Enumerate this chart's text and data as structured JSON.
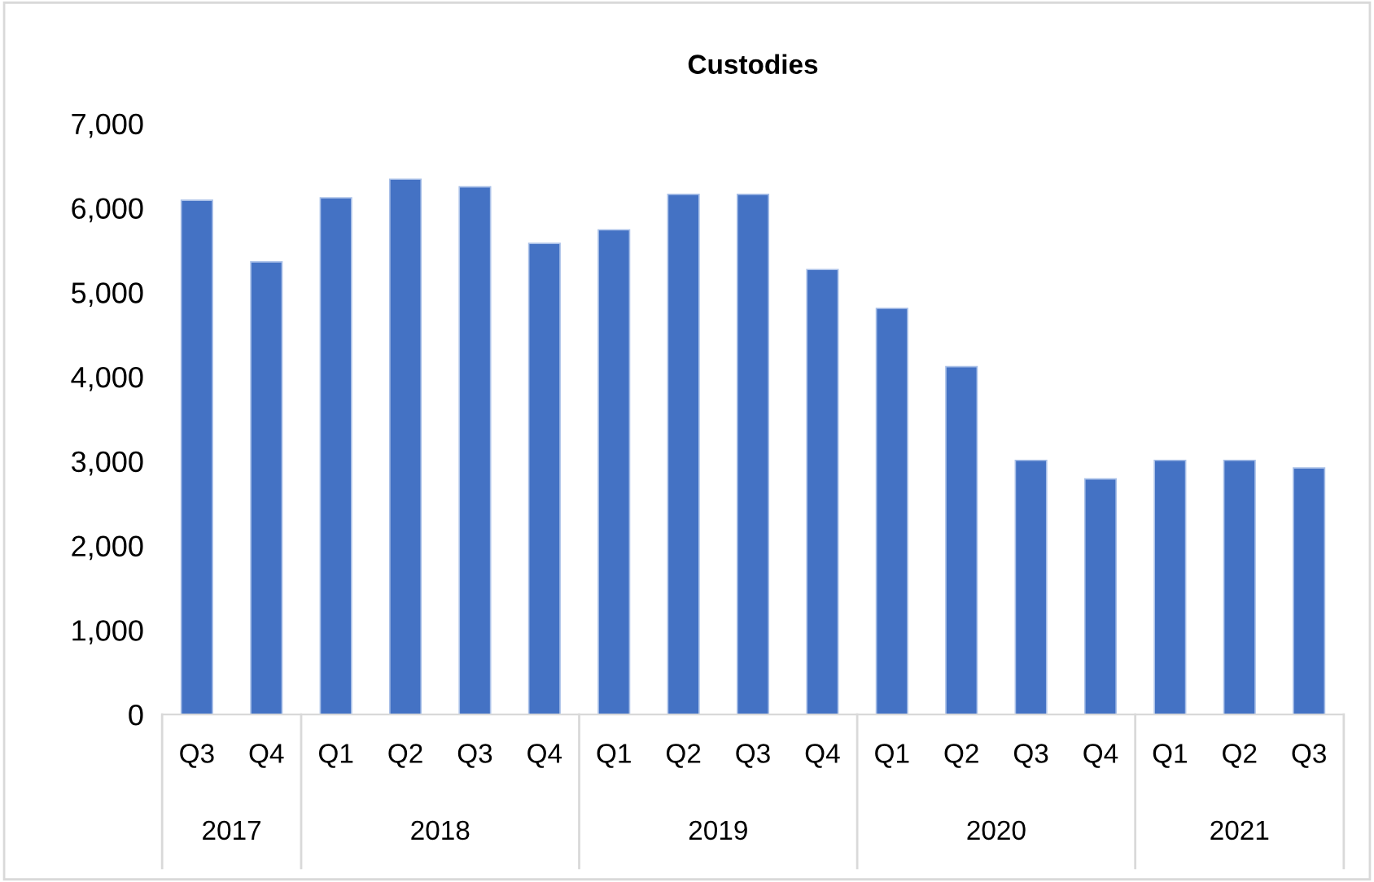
{
  "chart_data": {
    "type": "bar",
    "title": "Custodies",
    "categories": [
      "Q3",
      "Q4",
      "Q1",
      "Q2",
      "Q3",
      "Q4",
      "Q1",
      "Q2",
      "Q3",
      "Q4",
      "Q1",
      "Q2",
      "Q3",
      "Q4",
      "Q1",
      "Q2",
      "Q3"
    ],
    "values": [
      6090,
      5360,
      6120,
      6340,
      6250,
      5580,
      5740,
      6160,
      6160,
      5270,
      4810,
      4120,
      3010,
      2790,
      3010,
      3010,
      2920
    ],
    "color": "#4472c4",
    "annotations": [
      "2017",
      "2018",
      "2019",
      "2020",
      "2021"
    ],
    "ylim": [
      0,
      7000
    ],
    "yticks": [
      {
        "value": 0,
        "label": "0"
      },
      {
        "value": 1000,
        "label": "1,000"
      },
      {
        "value": 2000,
        "label": "2,000"
      },
      {
        "value": 3000,
        "label": "3,000"
      },
      {
        "value": 4000,
        "label": "4,000"
      },
      {
        "value": 5000,
        "label": "5,000"
      },
      {
        "value": 6000,
        "label": "6,000"
      },
      {
        "value": 7000,
        "label": "7,000"
      }
    ],
    "grid": false,
    "legend": false
  }
}
